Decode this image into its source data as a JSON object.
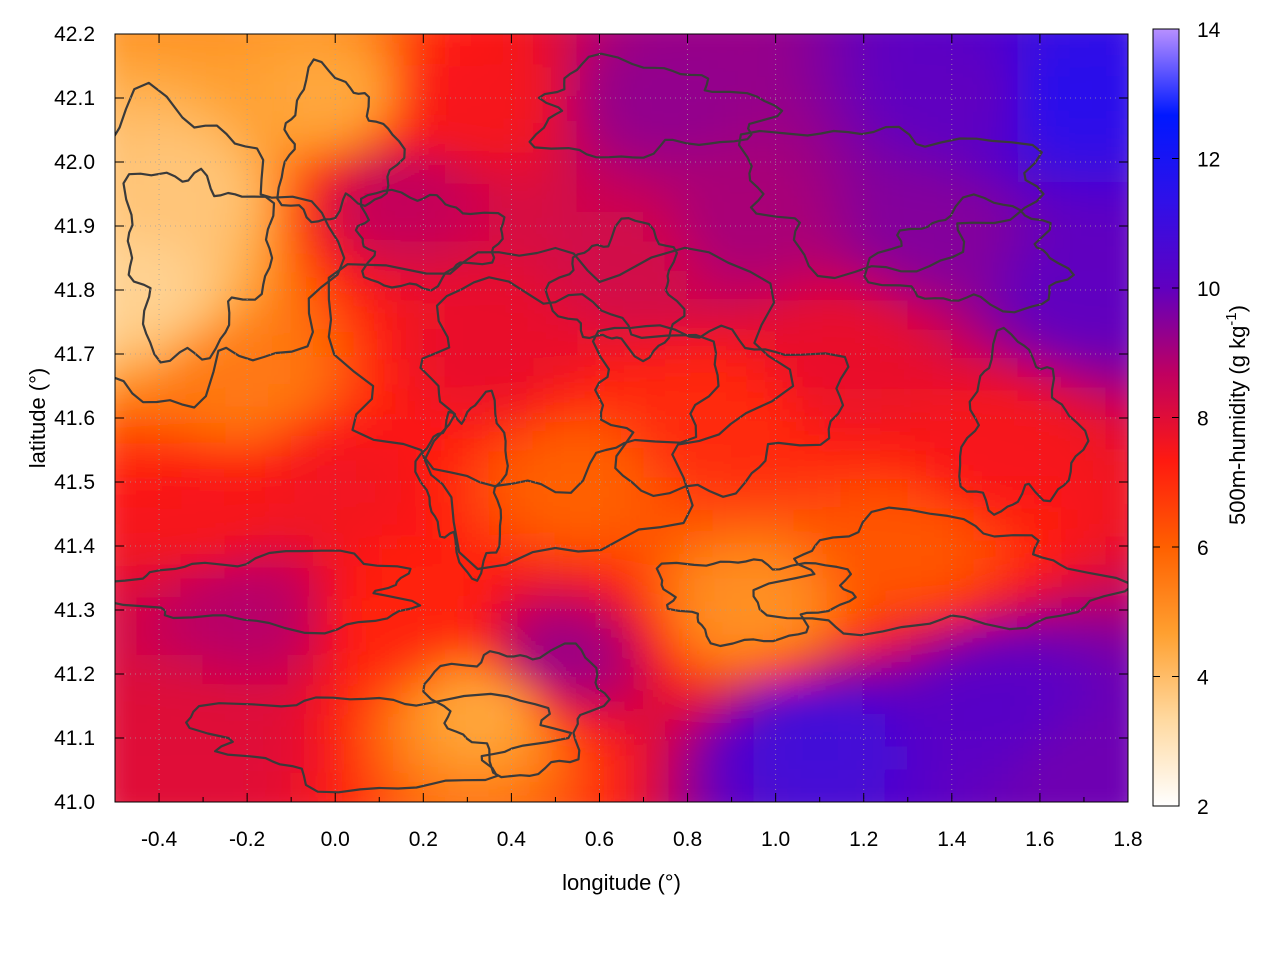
{
  "chart_data": {
    "type": "heatmap",
    "title": "",
    "xlabel": "longitude (°)",
    "ylabel": "latitude (°)",
    "colorbar_label": "500m-humidity (g kg-1)",
    "xlim": [
      -0.5,
      1.8
    ],
    "ylim": [
      41.0,
      42.2
    ],
    "clim": [
      2,
      14
    ],
    "x_ticks": [
      -0.4,
      -0.2,
      0.0,
      0.2,
      0.4,
      0.6,
      0.8,
      1.0,
      1.2,
      1.4,
      1.6,
      1.8
    ],
    "x_tick_labels": [
      "-0.4",
      "-0.2",
      "0.0",
      "0.2",
      "0.4",
      "0.6",
      "0.8",
      "1.0",
      "1.2",
      "1.4",
      "1.6",
      "1.8"
    ],
    "y_ticks": [
      41.0,
      41.1,
      41.2,
      41.3,
      41.4,
      41.5,
      41.6,
      41.7,
      41.8,
      41.9,
      42.0,
      42.1,
      42.2
    ],
    "y_tick_labels": [
      "41.0",
      "41.1",
      "41.2",
      "41.3",
      "41.4",
      "41.5",
      "41.6",
      "41.7",
      "41.8",
      "41.9",
      "42.0",
      "42.1",
      "42.2"
    ],
    "colorbar_ticks": [
      2,
      4,
      6,
      8,
      10,
      12,
      14
    ],
    "colorbar_tick_labels": [
      "2",
      "4",
      "6",
      "8",
      "10",
      "12",
      "14"
    ],
    "colormap": [
      "#ffffff",
      "#ffd9a0",
      "#ffa030",
      "#ff6000",
      "#ff1a10",
      "#c00060",
      "#6000c0",
      "#3010e8",
      "#0018ff",
      "#b890ff"
    ],
    "grid": true,
    "contours": true,
    "field_samples": [
      {
        "x": -0.45,
        "y": 41.8,
        "value": 3.5
      },
      {
        "x": -0.35,
        "y": 41.95,
        "value": 3.8
      },
      {
        "x": 0.0,
        "y": 42.1,
        "value": 4.5
      },
      {
        "x": -0.2,
        "y": 41.65,
        "value": 5.5
      },
      {
        "x": -0.3,
        "y": 41.45,
        "value": 7.5
      },
      {
        "x": -0.2,
        "y": 41.3,
        "value": 8.8
      },
      {
        "x": -0.3,
        "y": 41.1,
        "value": 8.0
      },
      {
        "x": 0.15,
        "y": 41.95,
        "value": 8.6
      },
      {
        "x": 0.3,
        "y": 42.1,
        "value": 7.5
      },
      {
        "x": 0.35,
        "y": 41.7,
        "value": 7.8
      },
      {
        "x": 0.55,
        "y": 41.5,
        "value": 6.0
      },
      {
        "x": 0.5,
        "y": 41.22,
        "value": 9.2
      },
      {
        "x": 0.35,
        "y": 41.15,
        "value": 4.5
      },
      {
        "x": 0.7,
        "y": 41.85,
        "value": 8.3
      },
      {
        "x": 0.75,
        "y": 42.1,
        "value": 9.3
      },
      {
        "x": 0.9,
        "y": 41.9,
        "value": 9.0
      },
      {
        "x": 0.85,
        "y": 41.6,
        "value": 7.0
      },
      {
        "x": 0.95,
        "y": 41.3,
        "value": 5.0
      },
      {
        "x": 1.15,
        "y": 41.7,
        "value": 7.8
      },
      {
        "x": 1.35,
        "y": 41.9,
        "value": 9.5
      },
      {
        "x": 1.45,
        "y": 42.1,
        "value": 10.0
      },
      {
        "x": 1.65,
        "y": 42.1,
        "value": 11.5
      },
      {
        "x": 1.7,
        "y": 41.8,
        "value": 10.0
      },
      {
        "x": 1.5,
        "y": 41.55,
        "value": 7.5
      },
      {
        "x": 1.3,
        "y": 41.4,
        "value": 6.2
      },
      {
        "x": 1.1,
        "y": 41.1,
        "value": 10.8
      },
      {
        "x": 1.5,
        "y": 41.15,
        "value": 10.2
      },
      {
        "x": 1.7,
        "y": 41.05,
        "value": 9.8
      },
      {
        "x": 0.15,
        "y": 41.3,
        "value": 7.2
      },
      {
        "x": 0.0,
        "y": 41.5,
        "value": 7.6
      }
    ]
  }
}
